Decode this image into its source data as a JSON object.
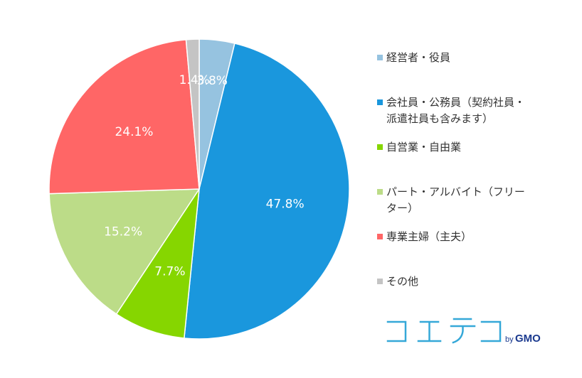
{
  "chart_data": {
    "type": "pie",
    "start_angle_deg": 0,
    "direction": "clockwise",
    "slices": [
      {
        "label": "経営者・役員",
        "legend_lines": [
          "経営者・役員"
        ],
        "value": 3.8,
        "value_label": "3.8%",
        "color": "#96c3e0"
      },
      {
        "label": "会社員・公務員（契約社員・派遣社員も含みます）",
        "legend_lines": [
          "会社員・公務員（契約社員・",
          "派遣社員も含みます）"
        ],
        "value": 47.8,
        "value_label": "47.8%",
        "color": "#1a97dd"
      },
      {
        "label": "自営業・自由業",
        "legend_lines": [
          "自営業・自由業"
        ],
        "value": 7.7,
        "value_label": "7.7%",
        "color": "#86d600"
      },
      {
        "label": "パート・アルバイト（フリーター）",
        "legend_lines": [
          "パート・アルバイト（フリー",
          "ター）"
        ],
        "value": 15.2,
        "value_label": "15.2%",
        "color": "#bcdc88"
      },
      {
        "label": "専業主婦（主夫）",
        "legend_lines": [
          "専業主婦（主夫）"
        ],
        "value": 24.1,
        "value_label": "24.1%",
        "color": "#ff6666"
      },
      {
        "label": "その他",
        "legend_lines": [
          "その他"
        ],
        "value": 1.4,
        "value_label": "1.4%",
        "color": "#c4c4c4"
      }
    ],
    "legend_position": "right"
  },
  "brand": {
    "logo_text": "コエテコ",
    "by_text": "by",
    "company_text": "GMO",
    "logo_color": "#35a8d8",
    "company_color": "#1b3a8f"
  }
}
